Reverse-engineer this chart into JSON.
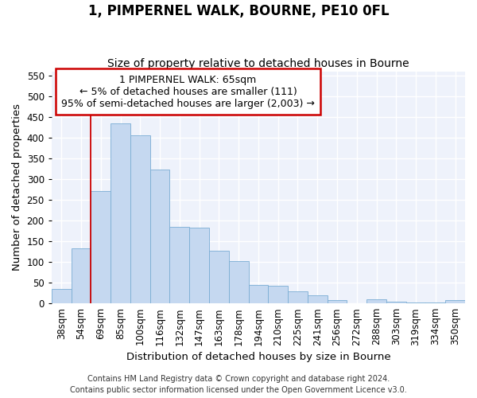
{
  "title": "1, PIMPERNEL WALK, BOURNE, PE10 0FL",
  "subtitle": "Size of property relative to detached houses in Bourne",
  "xlabel": "Distribution of detached houses by size in Bourne",
  "ylabel": "Number of detached properties",
  "categories": [
    "38sqm",
    "54sqm",
    "69sqm",
    "85sqm",
    "100sqm",
    "116sqm",
    "132sqm",
    "147sqm",
    "163sqm",
    "178sqm",
    "194sqm",
    "210sqm",
    "225sqm",
    "241sqm",
    "256sqm",
    "272sqm",
    "288sqm",
    "303sqm",
    "319sqm",
    "334sqm",
    "350sqm"
  ],
  "values": [
    35,
    133,
    272,
    435,
    405,
    322,
    185,
    183,
    128,
    103,
    45,
    43,
    29,
    20,
    8,
    0,
    9,
    5,
    3,
    2,
    8
  ],
  "bar_color": "#c5d8f0",
  "bar_edge_color": "#7aadd4",
  "highlight_color": "#cc0000",
  "highlight_bar_index": 2,
  "ylim": [
    0,
    560
  ],
  "yticks": [
    0,
    50,
    100,
    150,
    200,
    250,
    300,
    350,
    400,
    450,
    500,
    550
  ],
  "annotation_text": "1 PIMPERNEL WALK: 65sqm\n← 5% of detached houses are smaller (111)\n95% of semi-detached houses are larger (2,003) →",
  "annotation_box_color": "#ffffff",
  "annotation_box_edge": "#cc0000",
  "footer_line1": "Contains HM Land Registry data © Crown copyright and database right 2024.",
  "footer_line2": "Contains public sector information licensed under the Open Government Licence v3.0.",
  "title_fontsize": 12,
  "subtitle_fontsize": 10,
  "axis_label_fontsize": 9.5,
  "tick_fontsize": 8.5,
  "annotation_fontsize": 9,
  "footer_fontsize": 7,
  "background_color": "#eef2fb"
}
